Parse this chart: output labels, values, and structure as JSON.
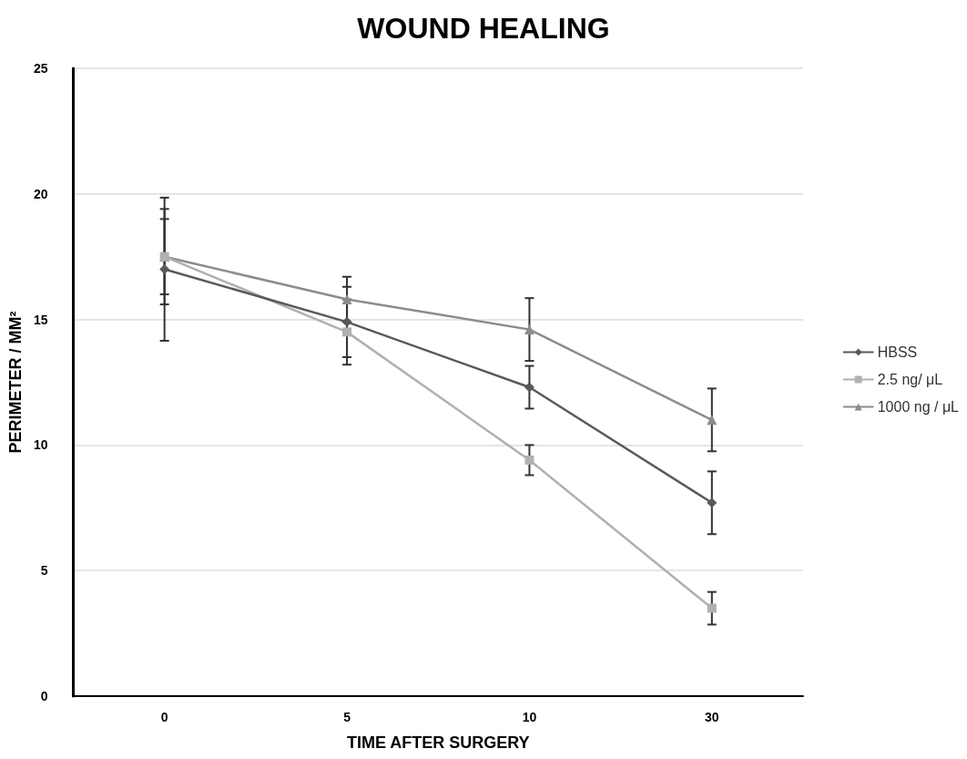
{
  "chart_data": {
    "type": "line",
    "title": "WOUND HEALING",
    "xlabel": "TIME AFTER SURGERY",
    "ylabel": "PERIMETER / MM²",
    "categories": [
      "0",
      "5",
      "10",
      "30"
    ],
    "series": [
      {
        "name": "HBSS",
        "color": "#595959",
        "marker": "diamond",
        "values": [
          17.0,
          14.9,
          12.3,
          7.7
        ],
        "errors": [
          2.85,
          1.4,
          0.85,
          1.25
        ]
      },
      {
        "name": "2.5 ng/ μL",
        "color": "#b0b0b0",
        "marker": "square",
        "values": [
          17.5,
          14.5,
          9.4,
          3.5
        ],
        "errors": [
          1.9,
          1.3,
          0.6,
          0.65
        ]
      },
      {
        "name": "1000 ng / μL",
        "color": "#8c8c8c",
        "marker": "triangle",
        "values": [
          17.5,
          15.8,
          14.6,
          11.0
        ],
        "errors": [
          1.5,
          0.9,
          1.25,
          1.25
        ]
      }
    ],
    "ylim": [
      0,
      25
    ],
    "yticks": [
      0,
      5,
      10,
      15,
      20,
      25
    ],
    "grid": "y",
    "legend": "right"
  }
}
